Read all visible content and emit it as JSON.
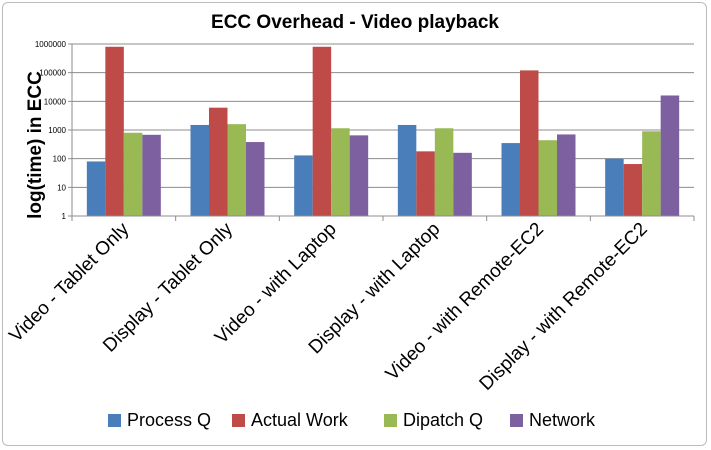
{
  "chart_data": {
    "type": "bar",
    "title": "ECC Overhead - Video playback",
    "ylabel": "log(time) in ECC",
    "xlabel": "",
    "yscale": "log",
    "ylim": [
      1,
      1000000
    ],
    "yticks": [
      "1",
      "10",
      "100",
      "1000",
      "10000",
      "100000",
      "1000000"
    ],
    "grid": true,
    "legend_position": "bottom",
    "categories": [
      "Video - Tablet Only",
      "Display - Tablet Only",
      "Video - with Laptop",
      "Display - with Laptop",
      "Video - with Remote-EC2",
      "Display - with Remote-EC2"
    ],
    "series": [
      {
        "name": "Process Q",
        "color": "#4a7ebb",
        "values": [
          80,
          1500,
          130,
          1500,
          350,
          100
        ]
      },
      {
        "name": "Actual Work",
        "color": "#be4b48",
        "values": [
          800000,
          6000,
          800000,
          180,
          120000,
          65
        ]
      },
      {
        "name": "Dipatch Q",
        "color": "#98b954",
        "values": [
          800,
          1600,
          1150,
          1150,
          440,
          900
        ]
      },
      {
        "name": "Network",
        "color": "#7d60a0",
        "values": [
          680,
          380,
          650,
          160,
          700,
          16000
        ]
      }
    ]
  }
}
